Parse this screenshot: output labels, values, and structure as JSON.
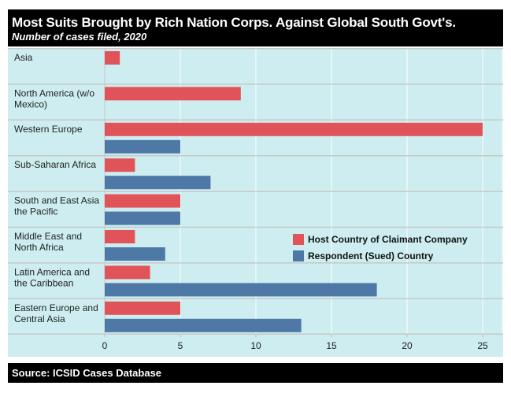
{
  "title": "Most Suits Brought by Rich Nation Corps. Against Global South Govt's.",
  "subtitle": "Number of cases filed, 2020",
  "source": "Source: ICSID Cases Database",
  "chart_data": {
    "type": "bar",
    "orientation": "horizontal",
    "categories": [
      [
        "Asia"
      ],
      [
        "North America (w/o",
        "Mexico)"
      ],
      [
        "Western Europe"
      ],
      [
        "Sub-Saharan Africa"
      ],
      [
        "South and East Asia",
        "the Pacific"
      ],
      [
        "Middle East and",
        "North Africa"
      ],
      [
        "Latin America and",
        "the Caribbean"
      ],
      [
        "Eastern Europe and",
        "Central Asia"
      ]
    ],
    "series": [
      {
        "name": "Host Country of Claimant Company",
        "color": "#e05459",
        "values": [
          1,
          9,
          25,
          2,
          5,
          2,
          3,
          5
        ]
      },
      {
        "name": "Respondent (Sued) Country",
        "color": "#4e79a7",
        "values": [
          0,
          0,
          5,
          7,
          5,
          4,
          18,
          13
        ]
      }
    ],
    "xlim": [
      0,
      26.3
    ],
    "xticks": [
      0,
      5,
      10,
      15,
      20,
      25
    ],
    "grid": true,
    "legend": "center-right",
    "background": "#cdedf0"
  }
}
